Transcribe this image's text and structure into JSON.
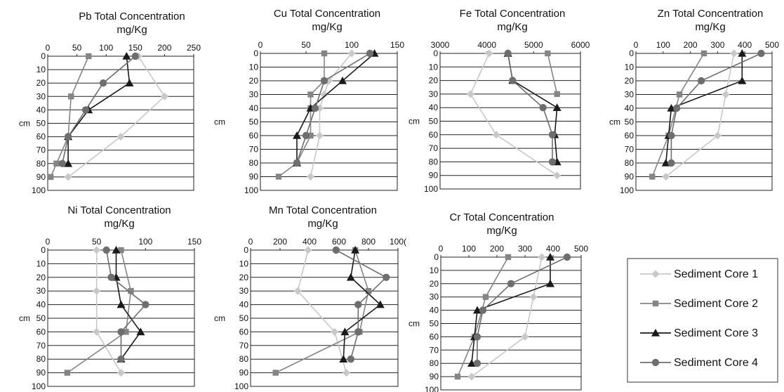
{
  "legend": {
    "items": [
      "Sediment Core 1",
      "Sediment Core 2",
      "Sediment Core 3",
      "Sediment Core 4"
    ]
  },
  "chart_data": [
    {
      "type": "line",
      "title": "Pb Total Concentration",
      "subtitle": "mg/Kg",
      "ylabel": "cm",
      "xlim": [
        0,
        250
      ],
      "xticks": [
        "0",
        "50",
        "100",
        "150",
        "200",
        "250"
      ],
      "ylim": [
        0,
        100
      ],
      "yticks": [
        "0",
        "10",
        "20",
        "30",
        "40",
        "50",
        "60",
        "70",
        "80",
        "90",
        "100"
      ],
      "grid": "horizontal",
      "series": [
        {
          "name": "Sediment Core 1",
          "color": "#c8c8c8",
          "marker": "diamond",
          "points": [
            [
              155,
              0
            ],
            [
              200,
              30
            ],
            [
              125,
              60
            ],
            [
              35,
              90
            ]
          ]
        },
        {
          "name": "Sediment Core 2",
          "color": "#858585",
          "marker": "square",
          "points": [
            [
              70,
              0
            ],
            [
              40,
              30
            ],
            [
              35,
              60
            ],
            [
              15,
              80
            ],
            [
              5,
              90
            ]
          ]
        },
        {
          "name": "Sediment Core 3",
          "color": "#1a1a1a",
          "marker": "triangle",
          "points": [
            [
              135,
              0
            ],
            [
              140,
              20
            ],
            [
              70,
              40
            ],
            [
              35,
              60
            ],
            [
              35,
              80
            ]
          ]
        },
        {
          "name": "Sediment Core 4",
          "color": "#6e6e6e",
          "marker": "circle",
          "points": [
            [
              150,
              0
            ],
            [
              95,
              20
            ],
            [
              65,
              40
            ],
            [
              35,
              60
            ],
            [
              25,
              80
            ]
          ]
        }
      ]
    },
    {
      "type": "line",
      "title": "Cu Total Concentration",
      "subtitle": "mg/Kg",
      "ylabel": "cm",
      "xlim": [
        0,
        150
      ],
      "xticks": [
        "0",
        "50",
        "100",
        "150"
      ],
      "ylim": [
        0,
        100
      ],
      "yticks": [
        "0",
        "10",
        "20",
        "30",
        "40",
        "50",
        "60",
        "70",
        "80",
        "90",
        "100"
      ],
      "grid": "horizontal",
      "series": [
        {
          "name": "Sediment Core 1",
          "color": "#c8c8c8",
          "marker": "diamond",
          "points": [
            [
              100,
              0
            ],
            [
              75,
              20
            ],
            [
              70,
              30
            ],
            [
              65,
              40
            ],
            [
              65,
              60
            ],
            [
              55,
              90
            ]
          ]
        },
        {
          "name": "Sediment Core 2",
          "color": "#858585",
          "marker": "square",
          "points": [
            [
              70,
              0
            ],
            [
              70,
              20
            ],
            [
              55,
              30
            ],
            [
              55,
              40
            ],
            [
              55,
              60
            ],
            [
              40,
              80
            ],
            [
              20,
              90
            ]
          ]
        },
        {
          "name": "Sediment Core 3",
          "color": "#1a1a1a",
          "marker": "triangle",
          "points": [
            [
              125,
              0
            ],
            [
              90,
              20
            ],
            [
              55,
              40
            ],
            [
              40,
              60
            ],
            [
              40,
              80
            ]
          ]
        },
        {
          "name": "Sediment Core 4",
          "color": "#6e6e6e",
          "marker": "circle",
          "points": [
            [
              120,
              0
            ],
            [
              70,
              20
            ],
            [
              60,
              40
            ],
            [
              50,
              60
            ],
            [
              40,
              80
            ]
          ]
        }
      ]
    },
    {
      "type": "line",
      "title": "Fe Total Concentration",
      "subtitle": "mg/Kg",
      "ylabel": "cm",
      "xlim": [
        3000,
        6000
      ],
      "xticks": [
        "3000",
        "4000",
        "5000",
        "6000"
      ],
      "ylim": [
        0,
        100
      ],
      "yticks": [
        "0",
        "10",
        "20",
        "30",
        "40",
        "50",
        "60",
        "70",
        "80",
        "90",
        "100"
      ],
      "grid": "horizontal",
      "series": [
        {
          "name": "Sediment Core 1",
          "color": "#c8c8c8",
          "marker": "diamond",
          "points": [
            [
              4050,
              0
            ],
            [
              3650,
              30
            ],
            [
              4200,
              60
            ],
            [
              5500,
              90
            ]
          ]
        },
        {
          "name": "Sediment Core 2",
          "color": "#858585",
          "marker": "square",
          "points": [
            [
              5300,
              0
            ],
            [
              5500,
              30
            ]
          ]
        },
        {
          "name": "Sediment Core 3",
          "color": "#1a1a1a",
          "marker": "triangle",
          "points": [
            [
              4450,
              0
            ],
            [
              4550,
              20
            ],
            [
              5500,
              40
            ],
            [
              5450,
              60
            ],
            [
              5500,
              80
            ]
          ]
        },
        {
          "name": "Sediment Core 4",
          "color": "#6e6e6e",
          "marker": "circle",
          "points": [
            [
              4450,
              0
            ],
            [
              4550,
              20
            ],
            [
              5200,
              40
            ],
            [
              5400,
              60
            ],
            [
              5400,
              80
            ]
          ]
        }
      ]
    },
    {
      "type": "line",
      "title": "Zn Total Concentration",
      "subtitle": "mg/Kg",
      "ylabel": "cm",
      "xlim": [
        0,
        500
      ],
      "xticks": [
        "0",
        "100",
        "200",
        "300",
        "400",
        "500"
      ],
      "ylim": [
        0,
        100
      ],
      "yticks": [
        "0",
        "10",
        "20",
        "30",
        "40",
        "50",
        "60",
        "70",
        "80",
        "90",
        "100"
      ],
      "grid": "horizontal",
      "series": [
        {
          "name": "Sediment Core 1",
          "color": "#c8c8c8",
          "marker": "diamond",
          "points": [
            [
              360,
              0
            ],
            [
              330,
              30
            ],
            [
              300,
              60
            ],
            [
              110,
              90
            ]
          ]
        },
        {
          "name": "Sediment Core 2",
          "color": "#858585",
          "marker": "square",
          "points": [
            [
              250,
              0
            ],
            [
              160,
              30
            ],
            [
              120,
              60
            ],
            [
              60,
              90
            ]
          ]
        },
        {
          "name": "Sediment Core 3",
          "color": "#1a1a1a",
          "marker": "triangle",
          "points": [
            [
              390,
              0
            ],
            [
              390,
              20
            ],
            [
              130,
              40
            ],
            [
              120,
              60
            ],
            [
              110,
              80
            ]
          ]
        },
        {
          "name": "Sediment Core 4",
          "color": "#6e6e6e",
          "marker": "circle",
          "points": [
            [
              460,
              0
            ],
            [
              240,
              20
            ],
            [
              150,
              40
            ],
            [
              130,
              60
            ],
            [
              130,
              80
            ]
          ]
        }
      ]
    },
    {
      "type": "line",
      "title": "Ni Total Concentration",
      "subtitle": "mg/Kg",
      "ylabel": "cm",
      "xlim": [
        0,
        150
      ],
      "xticks": [
        "0",
        "50",
        "100",
        "150"
      ],
      "ylim": [
        0,
        100
      ],
      "yticks": [
        "0",
        "10",
        "20",
        "30",
        "40",
        "50",
        "60",
        "70",
        "80",
        "90",
        "100"
      ],
      "grid": "horizontal",
      "series": [
        {
          "name": "Sediment Core 1",
          "color": "#c8c8c8",
          "marker": "diamond",
          "points": [
            [
              50,
              0
            ],
            [
              50,
              30
            ],
            [
              50,
              60
            ],
            [
              75,
              90
            ]
          ]
        },
        {
          "name": "Sediment Core 2",
          "color": "#858585",
          "marker": "square",
          "points": [
            [
              75,
              0
            ],
            [
              85,
              30
            ],
            [
              80,
              60
            ],
            [
              20,
              90
            ]
          ]
        },
        {
          "name": "Sediment Core 3",
          "color": "#1a1a1a",
          "marker": "triangle",
          "points": [
            [
              70,
              0
            ],
            [
              70,
              20
            ],
            [
              75,
              40
            ],
            [
              95,
              60
            ],
            [
              75,
              80
            ]
          ]
        },
        {
          "name": "Sediment Core 4",
          "color": "#6e6e6e",
          "marker": "circle",
          "points": [
            [
              60,
              0
            ],
            [
              65,
              20
            ],
            [
              100,
              40
            ],
            [
              75,
              60
            ],
            [
              75,
              80
            ]
          ]
        }
      ]
    },
    {
      "type": "line",
      "title": "Mn Total Concentration",
      "subtitle": "mg/Kg",
      "ylabel": "cm",
      "xlim": [
        0,
        1000
      ],
      "xticks": [
        "0",
        "200",
        "400",
        "600",
        "800",
        "100("
      ],
      "ylim": [
        0,
        100
      ],
      "yticks": [
        "0",
        "10",
        "20",
        "30",
        "40",
        "50",
        "60",
        "70",
        "80",
        "90",
        "100"
      ],
      "grid": "horizontal",
      "series": [
        {
          "name": "Sediment Core 1",
          "color": "#c8c8c8",
          "marker": "diamond",
          "points": [
            [
              390,
              0
            ],
            [
              320,
              30
            ],
            [
              570,
              60
            ],
            [
              650,
              90
            ]
          ]
        },
        {
          "name": "Sediment Core 2",
          "color": "#858585",
          "marker": "square",
          "points": [
            [
              710,
              0
            ],
            [
              800,
              30
            ],
            [
              740,
              60
            ],
            [
              170,
              90
            ]
          ]
        },
        {
          "name": "Sediment Core 3",
          "color": "#1a1a1a",
          "marker": "triangle",
          "points": [
            [
              710,
              0
            ],
            [
              680,
              20
            ],
            [
              880,
              40
            ],
            [
              640,
              60
            ],
            [
              630,
              80
            ]
          ]
        },
        {
          "name": "Sediment Core 4",
          "color": "#6e6e6e",
          "marker": "circle",
          "points": [
            [
              580,
              0
            ],
            [
              920,
              20
            ],
            [
              730,
              40
            ],
            [
              730,
              60
            ],
            [
              680,
              80
            ]
          ]
        }
      ]
    },
    {
      "type": "line",
      "title": "Cr Total Concentration",
      "subtitle": "mg/Kg",
      "ylabel": "cm",
      "xlim": [
        0,
        500
      ],
      "xticks": [
        "0",
        "100",
        "200",
        "300",
        "400",
        "500"
      ],
      "ylim": [
        0,
        100
      ],
      "yticks": [
        "0",
        "10",
        "20",
        "30",
        "40",
        "50",
        "60",
        "70",
        "80",
        "90",
        "100"
      ],
      "grid": "horizontal",
      "series": [
        {
          "name": "Sediment Core 1",
          "color": "#c8c8c8",
          "marker": "diamond",
          "points": [
            [
              360,
              0
            ],
            [
              330,
              30
            ],
            [
              300,
              60
            ],
            [
              110,
              90
            ]
          ]
        },
        {
          "name": "Sediment Core 2",
          "color": "#858585",
          "marker": "square",
          "points": [
            [
              240,
              0
            ],
            [
              160,
              30
            ],
            [
              120,
              60
            ],
            [
              60,
              90
            ]
          ]
        },
        {
          "name": "Sediment Core 3",
          "color": "#1a1a1a",
          "marker": "triangle",
          "points": [
            [
              390,
              0
            ],
            [
              390,
              20
            ],
            [
              130,
              40
            ],
            [
              120,
              60
            ],
            [
              110,
              80
            ]
          ]
        },
        {
          "name": "Sediment Core 4",
          "color": "#6e6e6e",
          "marker": "circle",
          "points": [
            [
              450,
              0
            ],
            [
              250,
              20
            ],
            [
              150,
              40
            ],
            [
              130,
              60
            ],
            [
              130,
              80
            ]
          ]
        }
      ]
    }
  ]
}
